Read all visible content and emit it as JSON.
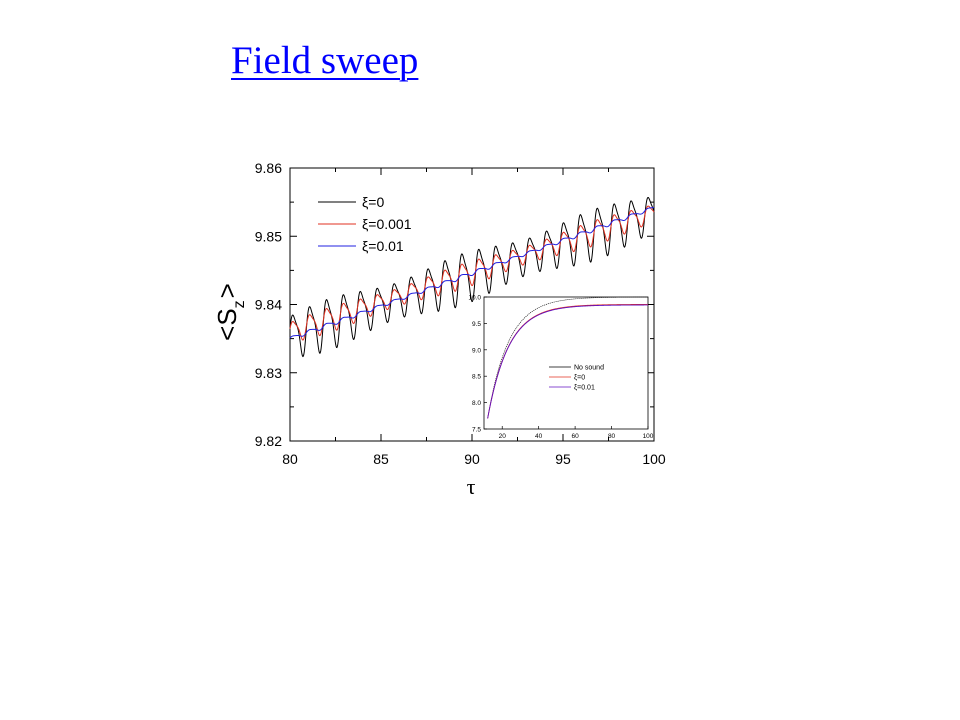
{
  "slide": {
    "title": "Field sweep",
    "link_color": "#0000ff"
  },
  "chart_data": [
    {
      "type": "line",
      "xlabel": "τ",
      "ylabel_main": "<S",
      "ylabel_sub": "z",
      "ylabel_close": ">",
      "xlim": [
        80,
        100
      ],
      "ylim": [
        9.82,
        9.86
      ],
      "xticks": [
        "80",
        "85",
        "90",
        "95",
        "100"
      ],
      "yticks": [
        "9.82",
        "9.83",
        "9.84",
        "9.85",
        "9.86"
      ],
      "legend_position": "top-left",
      "series": [
        {
          "name": "ξ=0",
          "color": "#000000",
          "trend_start": 9.8355,
          "trend_end": 9.8535,
          "oscillation_amplitude": 0.0035,
          "oscillation_period": 0.93
        },
        {
          "name": "ξ=0.001",
          "color": "#e03020",
          "trend_start": 9.836,
          "trend_end": 9.8535,
          "oscillation_amplitude": 0.0017,
          "oscillation_period": 0.93
        },
        {
          "name": "ξ=0.01",
          "color": "#2020e0",
          "trend_start": 9.835,
          "trend_end": 9.8542,
          "oscillation_amplitude": 0.0003,
          "oscillation_period": 0.93
        }
      ]
    },
    {
      "type": "line",
      "xlim": [
        10,
        100
      ],
      "ylim": [
        7.5,
        10.0
      ],
      "xticks": [
        "20",
        "40",
        "60",
        "80",
        "100"
      ],
      "yticks": [
        "7.5",
        "8.0",
        "8.5",
        "9.0",
        "9.5",
        "10.0"
      ],
      "legend_position": "center-right",
      "series": [
        {
          "name": "No sound",
          "color": "#000000",
          "asymptote": 10.0
        },
        {
          "name": "ξ=0",
          "color": "#e03020",
          "asymptote": 9.86
        },
        {
          "name": "ξ=0.01",
          "color": "#6010c0",
          "asymptote": 9.85
        }
      ]
    }
  ]
}
